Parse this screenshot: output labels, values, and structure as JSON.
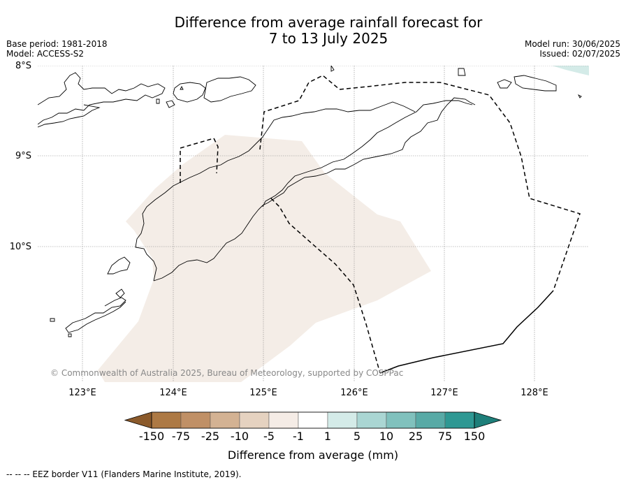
{
  "title_line1": "Difference from average rainfall forecast for",
  "title_line2": "7 to 13 July 2025",
  "base_period": "Base period: 1981-2018",
  "model": "Model: ACCESS-S2",
  "model_run": "Model run: 30/06/2025",
  "issued": "Issued: 02/07/2025",
  "copyright": "© Commonwealth of Australia 2025, Bureau of Meteorology, supported by COSPPac",
  "lat_labels": [
    "8°S",
    "9°S",
    "10°S"
  ],
  "lon_labels": [
    "123°E",
    "124°E",
    "125°E",
    "126°E",
    "127°E",
    "128°E"
  ],
  "colorbar": {
    "tick_labels": [
      "-150",
      "-75",
      "-25",
      "-10",
      "-5",
      "-1",
      "1",
      "5",
      "10",
      "25",
      "75",
      "150"
    ],
    "colors": [
      "#8b5a2b",
      "#ad7944",
      "#c09066",
      "#d3b293",
      "#e5d2c0",
      "#f5ece6",
      "#ffffff",
      "#d4ebe8",
      "#aad6d3",
      "#80c1bd",
      "#58aaa6",
      "#2e9893",
      "#1e7f7a"
    ],
    "label": "Difference from average (mm)"
  },
  "eez_note": "--  --  -- EEZ border V11 (Flanders Marine Institute, 2019).",
  "map": {
    "anomaly_color": "#f4ede7",
    "top_right_color": "#d4ebe8"
  }
}
